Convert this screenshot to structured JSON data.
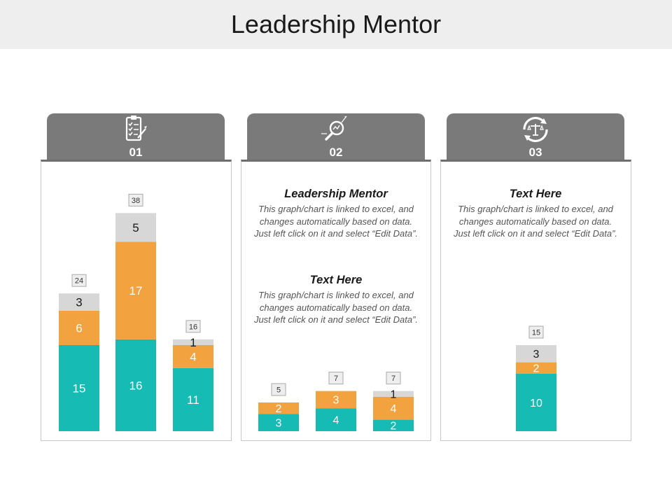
{
  "title": "Leadership Mentor",
  "colors": {
    "teal": "#16bcb4",
    "orange": "#f2a23e",
    "gray": "#d7d7d7",
    "tab": "#7a7a7a"
  },
  "tabs": [
    {
      "number": "01",
      "icon": "checklist-clipboard-icon"
    },
    {
      "number": "02",
      "icon": "magnifier-growth-icon"
    },
    {
      "number": "03",
      "icon": "balance-scale-cycle-icon"
    }
  ],
  "texts": {
    "panel2_block1": {
      "heading": "Leadership Mentor",
      "body": "This graph/chart is linked to excel, and changes automatically based on data. Just left click on it and select “Edit Data”."
    },
    "panel2_block2": {
      "heading": "Text Here",
      "body": "This graph/chart is linked to excel, and changes automatically based on data. Just left click on it and select “Edit Data”."
    },
    "panel3_block1": {
      "heading": "Text Here",
      "body": "This graph/chart is linked to excel, and changes automatically based on data. Just left click on it and select “Edit Data”."
    }
  },
  "chart_data": [
    {
      "type": "bar",
      "stacked": true,
      "panel": "01",
      "categories": [
        "",
        "",
        ""
      ],
      "series": [
        {
          "values": [
            15,
            16,
            11
          ],
          "color": "#16bcb4"
        },
        {
          "values": [
            6,
            17,
            4
          ],
          "color": "#f2a23e"
        },
        {
          "values": [
            3,
            5,
            1
          ],
          "color": "#d7d7d7"
        }
      ],
      "totals": [
        24,
        38,
        16
      ]
    },
    {
      "type": "bar",
      "stacked": true,
      "panel": "02",
      "categories": [
        "",
        "",
        ""
      ],
      "series": [
        {
          "values": [
            3,
            4,
            2
          ],
          "color": "#16bcb4"
        },
        {
          "values": [
            2,
            3,
            4
          ],
          "color": "#f2a23e"
        },
        {
          "values": [
            0,
            0,
            1
          ],
          "color": "#d7d7d7"
        }
      ],
      "totals": [
        5,
        7,
        7
      ]
    },
    {
      "type": "bar",
      "stacked": true,
      "panel": "03",
      "categories": [
        ""
      ],
      "series": [
        {
          "values": [
            10
          ],
          "color": "#16bcb4"
        },
        {
          "values": [
            2
          ],
          "color": "#f2a23e"
        },
        {
          "values": [
            3
          ],
          "color": "#d7d7d7"
        }
      ],
      "totals": [
        15
      ]
    }
  ]
}
